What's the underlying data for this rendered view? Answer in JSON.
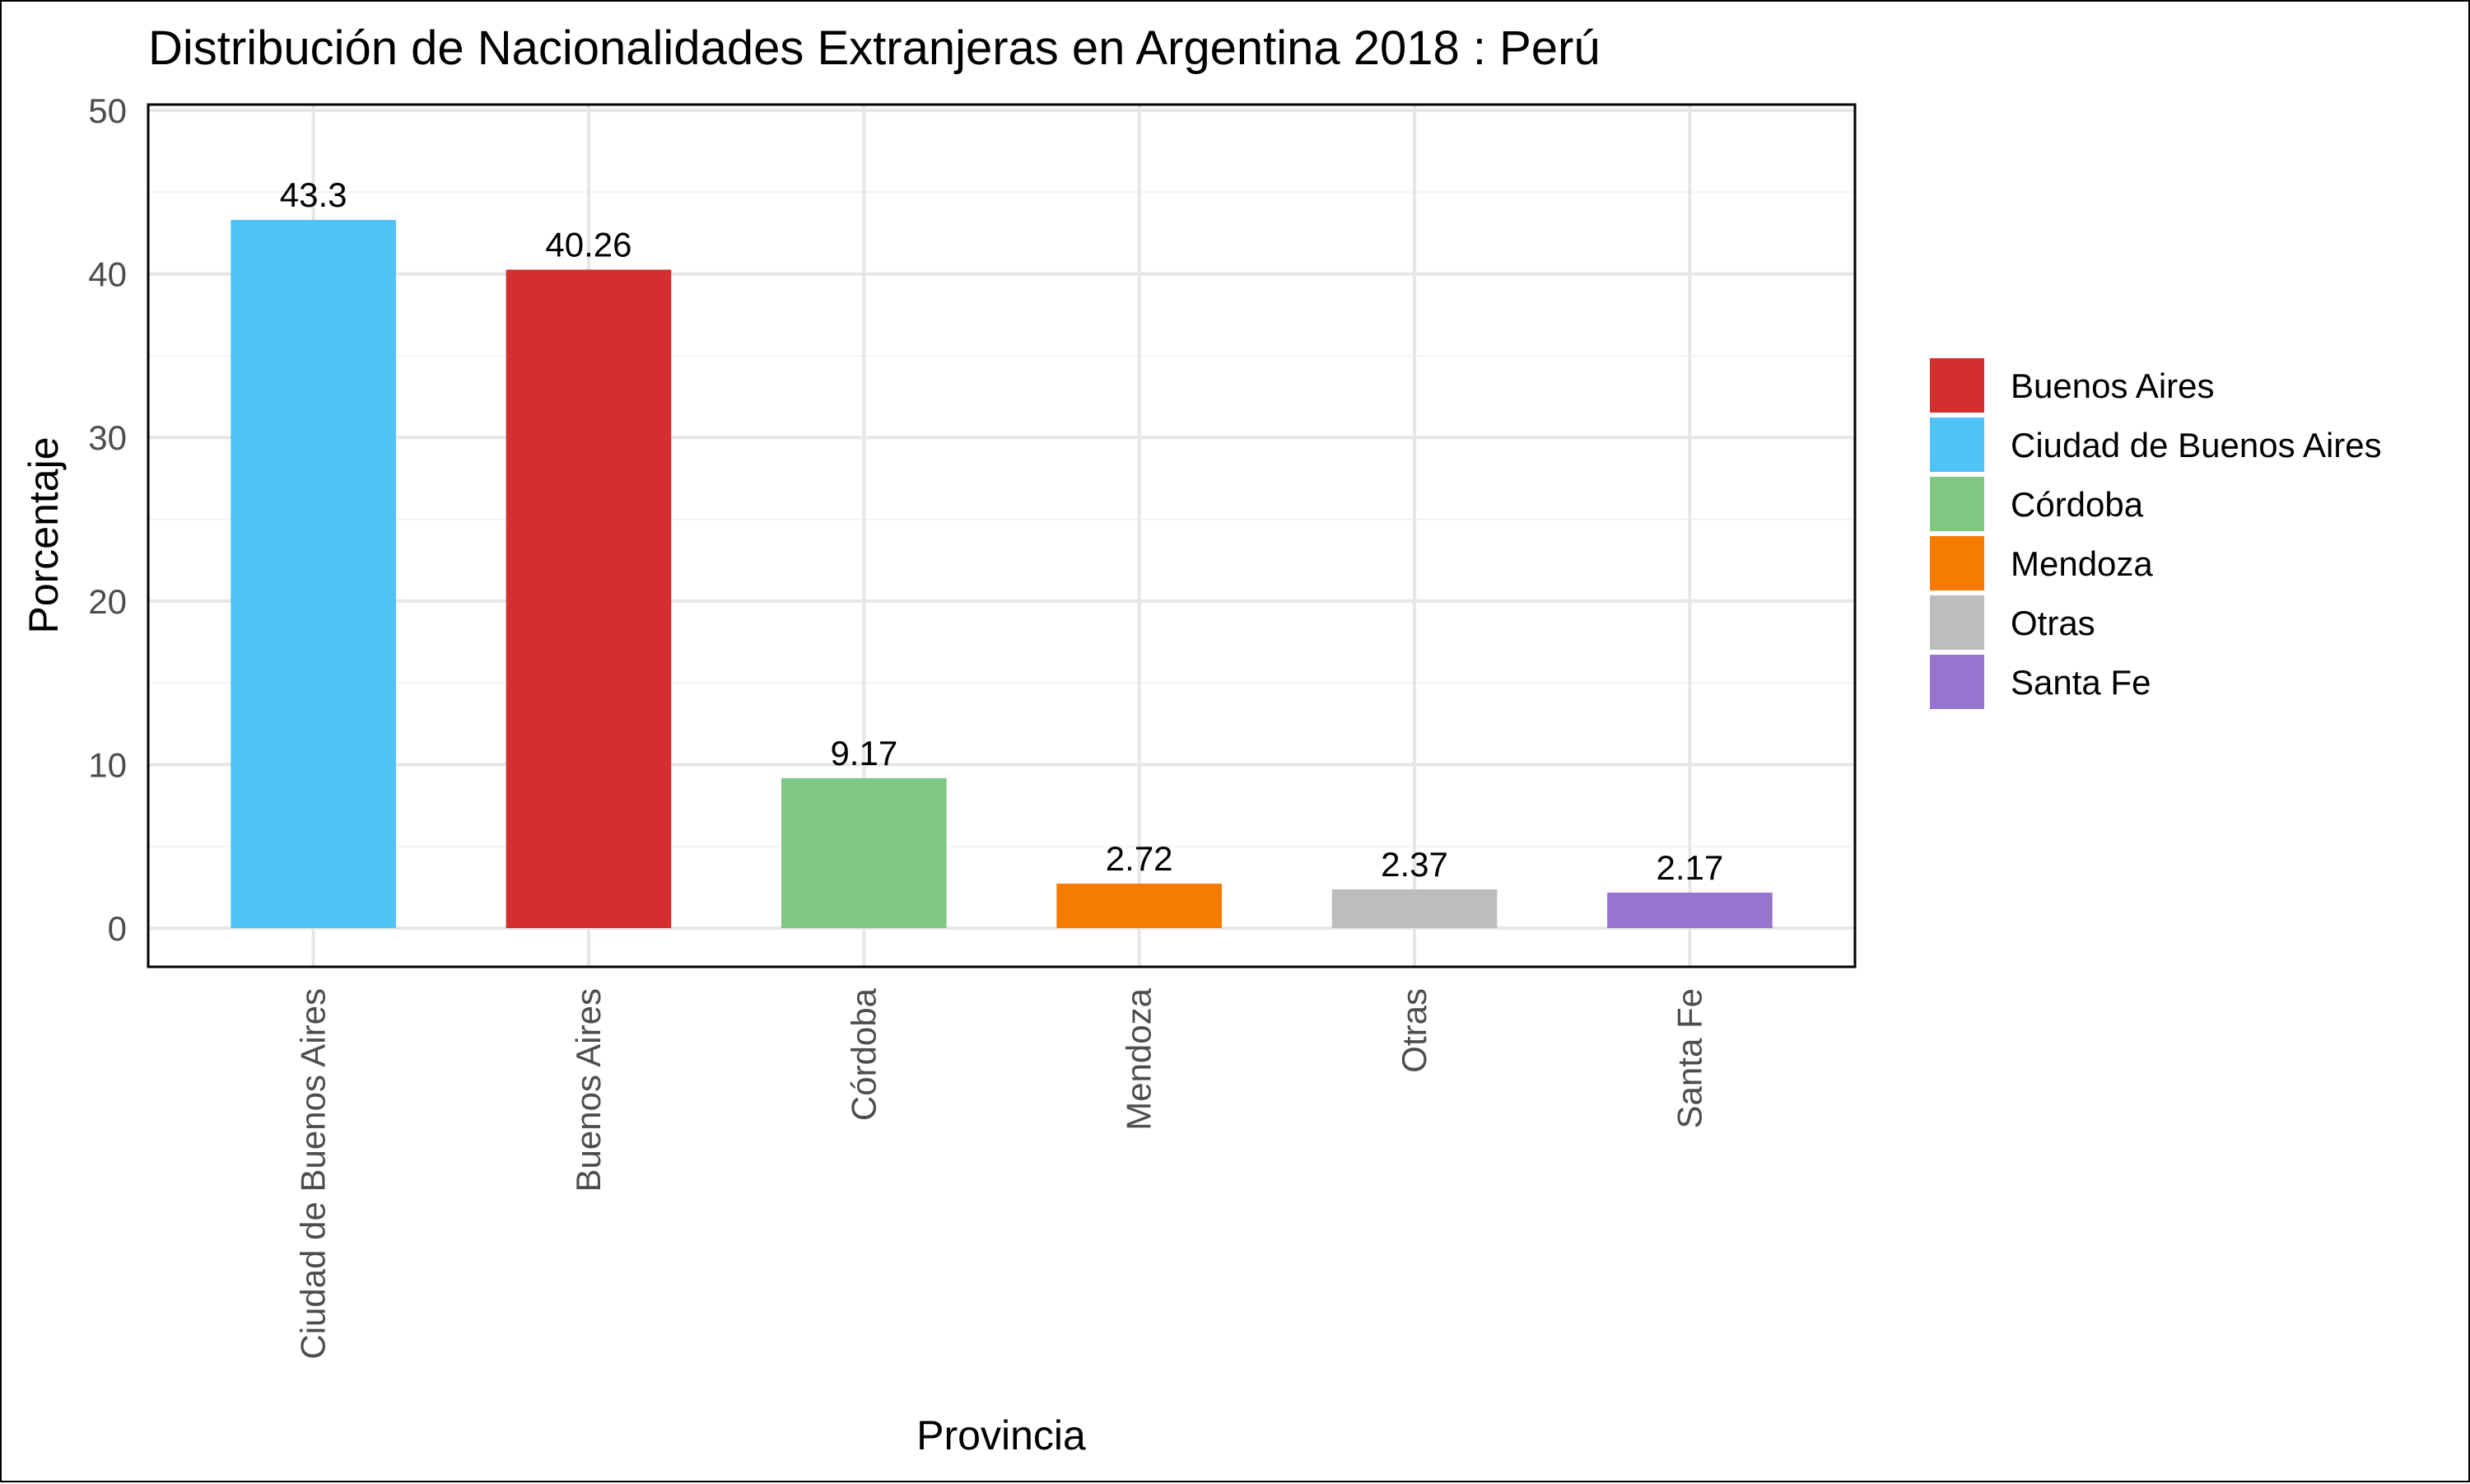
{
  "chart_data": {
    "type": "bar",
    "title": "Distribución de Nacionalidades Extranjeras en Argentina  2018 : Perú",
    "xlabel": "Provincia",
    "ylabel": "Porcentaje",
    "ylim": [
      0,
      50
    ],
    "yticks": [
      "0",
      "10",
      "20",
      "30",
      "40",
      "50"
    ],
    "grid": true,
    "legend_position": "right",
    "categories": [
      "Ciudad de Buenos Aires",
      "Buenos Aires",
      "Córdoba",
      "Mendoza",
      "Otras",
      "Santa Fe"
    ],
    "values": [
      43.3,
      40.26,
      9.17,
      2.72,
      2.37,
      2.17
    ],
    "value_labels": [
      "43.3",
      "40.26",
      "9.17",
      "2.72",
      "2.37",
      "2.17"
    ],
    "colors": {
      "Buenos Aires": "#d32f2f",
      "Ciudad de Buenos Aires": "#4fc3f7",
      "Córdoba": "#81c784",
      "Mendoza": "#f57c00",
      "Otras": "#bdbdbd",
      "Santa Fe": "#9575cd"
    },
    "legend": [
      "Buenos Aires",
      "Ciudad de Buenos Aires",
      "Córdoba",
      "Mendoza",
      "Otras",
      "Santa Fe"
    ]
  }
}
